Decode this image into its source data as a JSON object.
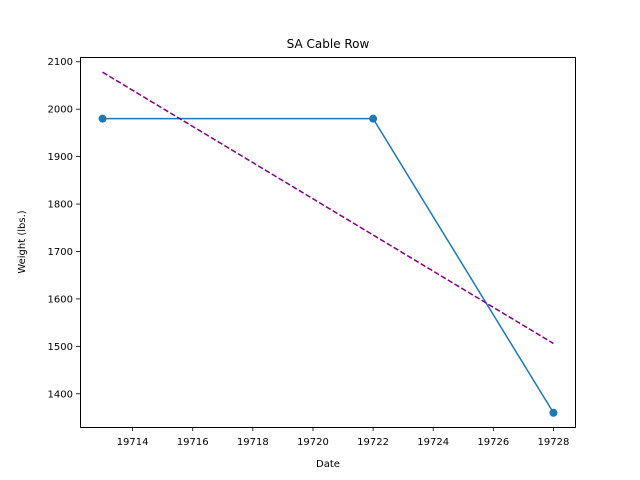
{
  "chart_data": {
    "type": "line",
    "title": "SA Cable Row",
    "xlabel": "Date",
    "ylabel": "Weight (lbs.)",
    "xlim": [
      19712.25,
      19728.75
    ],
    "ylim": [
      1330,
      2110
    ],
    "xticks": [
      19714,
      19716,
      19718,
      19720,
      19722,
      19724,
      19726,
      19728
    ],
    "yticks": [
      1400,
      1500,
      1600,
      1700,
      1800,
      1900,
      2000,
      2100
    ],
    "grid": false,
    "series": [
      {
        "kind": "line-markers",
        "color": "#1f77b4",
        "x": [
          19713,
          19722,
          19728
        ],
        "y": [
          1980,
          1980,
          1360
        ]
      },
      {
        "kind": "trend-dashed",
        "color": "#800080",
        "x": [
          19713,
          19728
        ],
        "y": [
          2078,
          1506
        ]
      }
    ]
  }
}
